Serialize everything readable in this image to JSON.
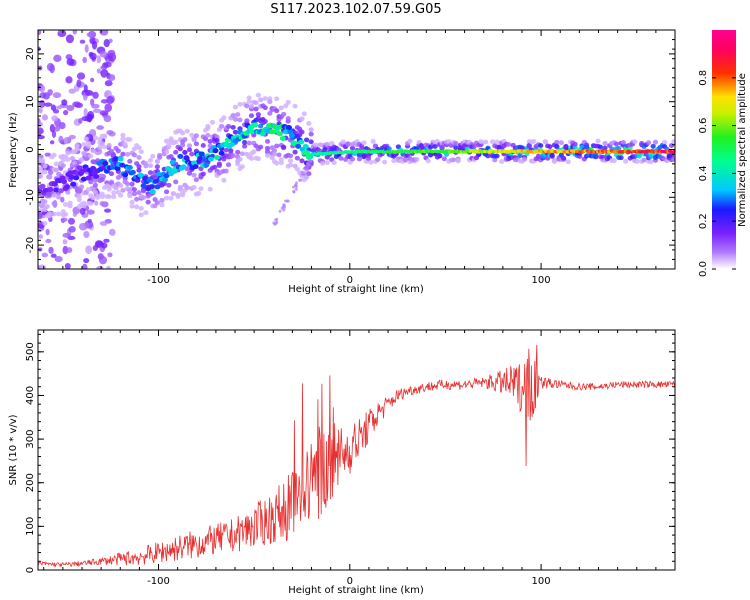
{
  "title": "S117.2023.102.07.59.G05",
  "colors": {
    "snr_line": "#e83030",
    "axis": "#000000"
  },
  "chart_data": [
    {
      "type": "heatmap",
      "title": "",
      "xlabel": "Height of straight line (km)",
      "ylabel": "Frequency (Hz)",
      "xlim": [
        -163,
        170
      ],
      "ylim": [
        -25,
        25
      ],
      "xticks": [
        -100,
        0,
        100
      ],
      "yticks": [
        -20,
        -10,
        0,
        10,
        20
      ],
      "grid": false,
      "colorbar": {
        "label": "Normalized spectral amplitude",
        "range": [
          0.0,
          1.0
        ],
        "ticks": [
          "0.0",
          "0.2",
          "0.4",
          "0.6",
          "0.8"
        ],
        "colormap": "rainbow (white-purple-blue-cyan-green-yellow-red-magenta)"
      },
      "ridge": {
        "x": [
          -160,
          -140,
          -120,
          -105,
          -90,
          -75,
          -60,
          -50,
          -40,
          -30,
          -20,
          0,
          50,
          100,
          150,
          170
        ],
        "frequency": [
          -9,
          -5,
          -3,
          -8,
          -3,
          -2,
          2,
          5,
          4,
          3,
          -1,
          -0.5,
          -0.4,
          -0.4,
          -0.4,
          -0.4
        ],
        "amplitude": [
          0.15,
          0.2,
          0.3,
          0.3,
          0.35,
          0.35,
          0.4,
          0.4,
          0.45,
          0.4,
          0.45,
          0.5,
          0.6,
          0.75,
          0.9,
          0.9
        ]
      }
    },
    {
      "type": "line",
      "title": "",
      "xlabel": "Height of straight line (km)",
      "ylabel": "SNR (10 * v/v)",
      "xlim": [
        -163,
        170
      ],
      "ylim": [
        0,
        550
      ],
      "xticks": [
        -100,
        0,
        100
      ],
      "yticks": [
        0,
        100,
        200,
        300,
        400,
        500
      ],
      "grid": false,
      "series": [
        {
          "x": [
            -163,
            -150,
            -140,
            -130,
            -120,
            -110,
            -100,
            -90,
            -80,
            -70,
            -60,
            -50,
            -40,
            -30,
            -25,
            -20,
            -15,
            -10,
            -5,
            0,
            5,
            10,
            15,
            20,
            25,
            30,
            40,
            50,
            60,
            70,
            80,
            90,
            95,
            100,
            110,
            120,
            130,
            140,
            150,
            160,
            170
          ],
          "y": [
            15,
            12,
            15,
            20,
            25,
            30,
            40,
            50,
            60,
            70,
            80,
            100,
            120,
            150,
            180,
            200,
            230,
            250,
            260,
            280,
            300,
            330,
            360,
            380,
            400,
            410,
            420,
            425,
            425,
            430,
            430,
            420,
            430,
            430,
            425,
            420,
            420,
            425,
            425,
            425,
            425
          ],
          "noise": [
            5,
            5,
            6,
            8,
            15,
            20,
            25,
            30,
            35,
            35,
            40,
            50,
            60,
            80,
            90,
            100,
            110,
            90,
            80,
            60,
            50,
            40,
            30,
            20,
            15,
            12,
            12,
            12,
            12,
            12,
            30,
            60,
            100,
            15,
            10,
            8,
            8,
            8,
            8,
            8,
            8
          ]
        }
      ]
    }
  ]
}
